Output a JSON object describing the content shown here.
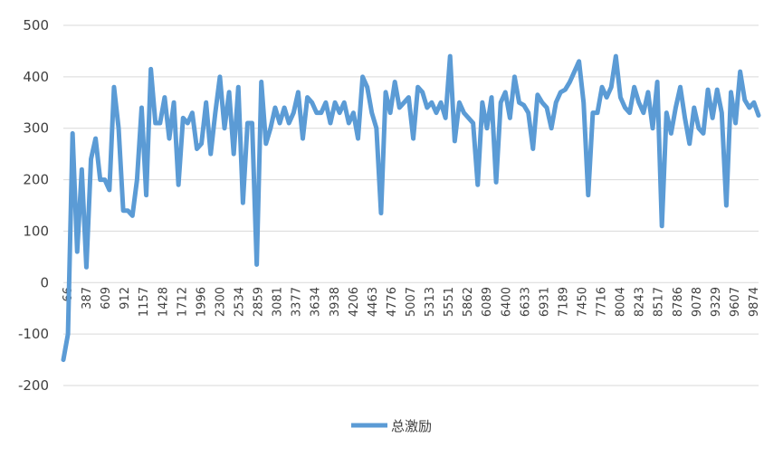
{
  "chart_data": {
    "type": "line",
    "title": "",
    "xlabel": "",
    "ylabel": "",
    "ylim": [
      -200,
      500
    ],
    "yticks": [
      -200,
      -100,
      0,
      100,
      200,
      300,
      400,
      500
    ],
    "grid": "horizontal",
    "legend_position": "bottom-center",
    "series_color": "#5b9bd5",
    "x_tick_labels": [
      "66",
      "387",
      "609",
      "912",
      "1157",
      "1428",
      "1712",
      "1996",
      "2300",
      "2534",
      "2859",
      "3081",
      "3377",
      "3634",
      "3938",
      "4206",
      "4463",
      "4776",
      "5007",
      "5313",
      "5551",
      "5862",
      "6089",
      "6400",
      "6633",
      "6931",
      "7189",
      "7450",
      "7716",
      "8004",
      "8243",
      "8517",
      "8786",
      "9078",
      "9329",
      "9607",
      "9874"
    ],
    "series": [
      {
        "name": "总激励",
        "values": [
          -150,
          -100,
          290,
          60,
          220,
          30,
          240,
          280,
          200,
          200,
          180,
          380,
          300,
          140,
          140,
          130,
          200,
          340,
          170,
          415,
          310,
          310,
          360,
          280,
          350,
          190,
          320,
          310,
          330,
          260,
          270,
          350,
          250,
          330,
          400,
          300,
          370,
          250,
          380,
          155,
          310,
          310,
          35,
          390,
          270,
          300,
          340,
          310,
          340,
          310,
          330,
          370,
          280,
          360,
          350,
          330,
          330,
          350,
          310,
          350,
          330,
          350,
          310,
          330,
          280,
          400,
          380,
          330,
          300,
          135,
          370,
          330,
          390,
          340,
          350,
          360,
          280,
          380,
          370,
          340,
          350,
          330,
          350,
          320,
          440,
          275,
          350,
          330,
          320,
          310,
          190,
          350,
          300,
          360,
          195,
          350,
          370,
          320,
          400,
          350,
          345,
          330,
          260,
          365,
          350,
          340,
          300,
          350,
          370,
          375,
          390,
          410,
          430,
          350,
          170,
          330,
          330,
          380,
          360,
          380,
          440,
          360,
          340,
          330,
          380,
          350,
          330,
          370,
          300,
          390,
          110,
          330,
          290,
          340,
          380,
          320,
          270,
          340,
          300,
          290,
          375,
          320,
          375,
          330,
          150,
          370,
          310,
          410,
          355,
          340,
          350,
          325
        ]
      }
    ]
  }
}
